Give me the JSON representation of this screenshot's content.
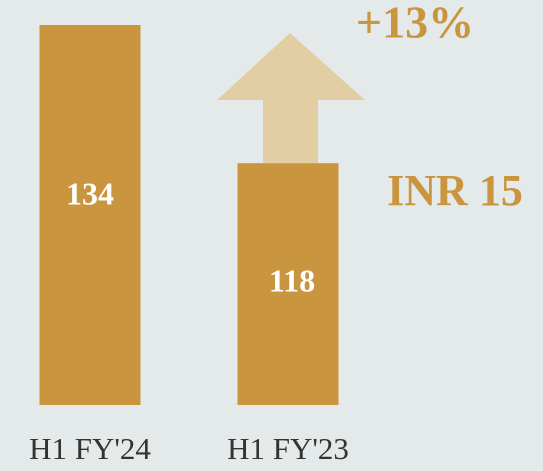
{
  "chart_data": {
    "type": "bar",
    "categories": [
      "H1 FY'24",
      "H1 FY'23"
    ],
    "values": [
      134,
      118
    ],
    "color": "#c9953f",
    "ylim": [
      90,
      134
    ],
    "annotations": [
      "+13%",
      "INR 15"
    ]
  }
}
